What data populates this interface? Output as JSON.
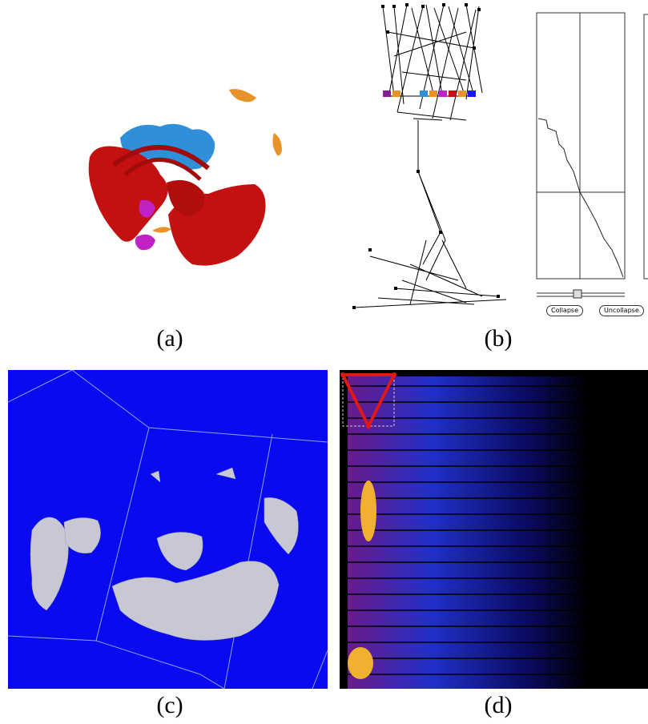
{
  "captions": {
    "a": "(a)",
    "b": "(b)",
    "c": "(c)",
    "d": "(d)"
  },
  "panel_b": {
    "collapse_label": "Collapse",
    "uncollapse_label": "Uncollapse"
  },
  "colors": {
    "volume_red": "#c41010",
    "volume_blue": "#2f8fd8",
    "volume_orange": "#e8922a",
    "volume_magenta": "#c022c8",
    "panel_c_background": "#0a0af0",
    "panel_d_background": "#000000",
    "selection_triangle": "#e01818"
  },
  "icons": {
    "slider_thumb": "slider-thumb-icon",
    "selection_triangle": "triangle-selection-icon"
  }
}
